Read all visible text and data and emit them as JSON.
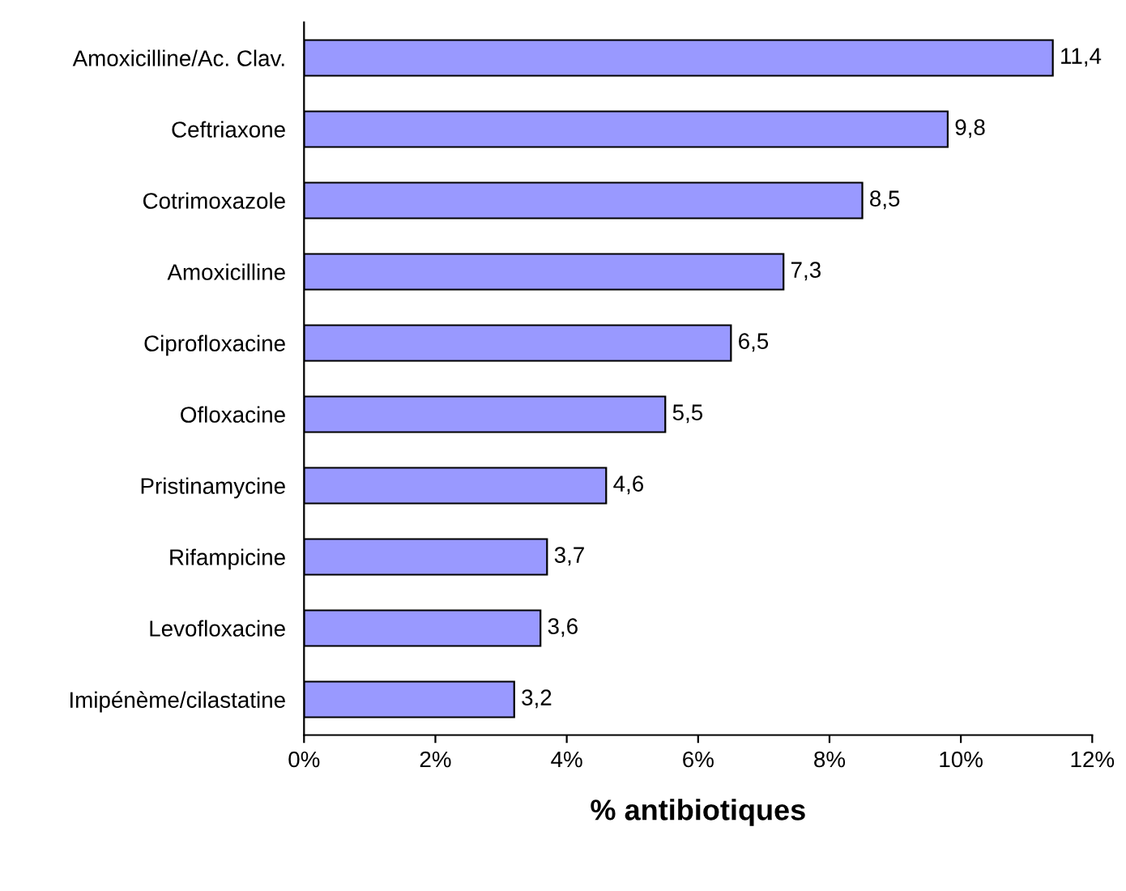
{
  "chart_data": {
    "type": "bar",
    "orientation": "horizontal",
    "xlabel": "% antibiotiques",
    "categories": [
      "Amoxicilline/Ac. Clav.",
      "Ceftriaxone",
      "Cotrimoxazole",
      "Amoxicilline",
      "Ciprofloxacine",
      "Ofloxacine",
      "Pristinamycine",
      "Rifampicine",
      "Levofloxacine",
      "Imipénème/cilastatine"
    ],
    "values": [
      11.4,
      9.8,
      8.5,
      7.3,
      6.5,
      5.5,
      4.6,
      3.7,
      3.6,
      3.2
    ],
    "value_labels": [
      "11,4",
      "9,8",
      "8,5",
      "7,3",
      "6,5",
      "5,5",
      "4,6",
      "3,7",
      "3,6",
      "3,2"
    ],
    "color": "#9999ff",
    "xlim": [
      0,
      12
    ],
    "xticks": [
      {
        "value": 0,
        "label": "0%"
      },
      {
        "value": 2,
        "label": "2%"
      },
      {
        "value": 4,
        "label": "4%"
      },
      {
        "value": 6,
        "label": "6%"
      },
      {
        "value": 8,
        "label": "8%"
      },
      {
        "value": 10,
        "label": "10%"
      },
      {
        "value": 12,
        "label": "12%"
      }
    ],
    "grid": false,
    "legend": false
  }
}
